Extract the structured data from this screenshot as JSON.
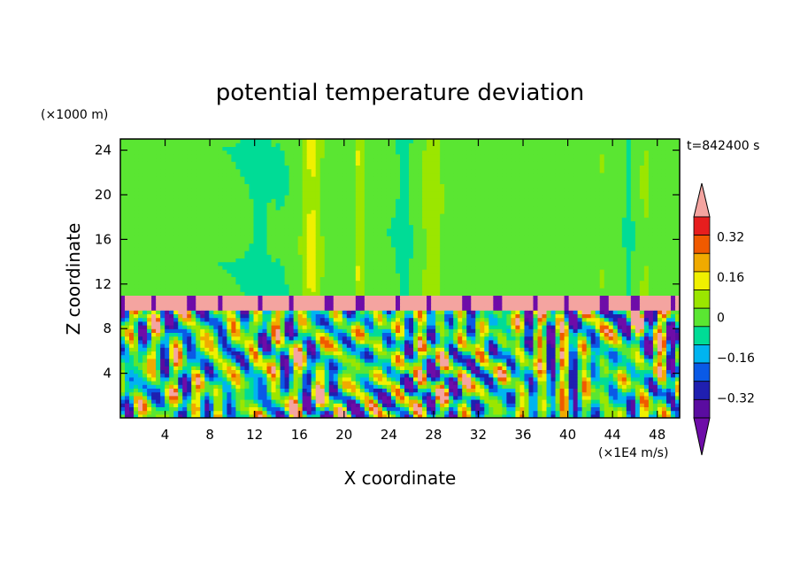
{
  "chart_data": {
    "type": "heatmap",
    "title": "potential temperature deviation",
    "xlabel": "X coordinate",
    "ylabel": "Z coordinate",
    "x_unit": "(×1E4 m/s)",
    "y_unit": "(×1000 m)",
    "time_label": "t=842400 s",
    "xlim": [
      0,
      50
    ],
    "ylim": [
      0,
      25
    ],
    "x_ticks": [
      4,
      8,
      12,
      16,
      20,
      24,
      28,
      32,
      36,
      40,
      44,
      48
    ],
    "y_ticks": [
      4,
      8,
      12,
      16,
      20,
      24
    ],
    "x_tick_labels": [
      "4",
      "8",
      "12",
      "16",
      "20",
      "24",
      "28",
      "32",
      "36",
      "40",
      "44",
      "48"
    ],
    "y_tick_labels": [
      "4",
      "8",
      "12",
      "16",
      "20",
      "24"
    ],
    "colorbar": {
      "levels": [
        -0.4,
        -0.32,
        -0.24,
        -0.16,
        -0.08,
        0,
        0.08,
        0.16,
        0.24,
        0.32,
        0.4
      ],
      "colors": [
        "#5a0ca0",
        "#1f1fb0",
        "#0a5ae6",
        "#00b4f0",
        "#00dc96",
        "#5ae632",
        "#9be600",
        "#f0f000",
        "#f0aa00",
        "#f05a00",
        "#e61e1e"
      ],
      "under_color": "#6e0ca8",
      "over_color": "#f4a4a0",
      "tick_labels": [
        "0.32",
        "0.16",
        "0",
        "−0.16",
        "−0.32"
      ]
    }
  }
}
